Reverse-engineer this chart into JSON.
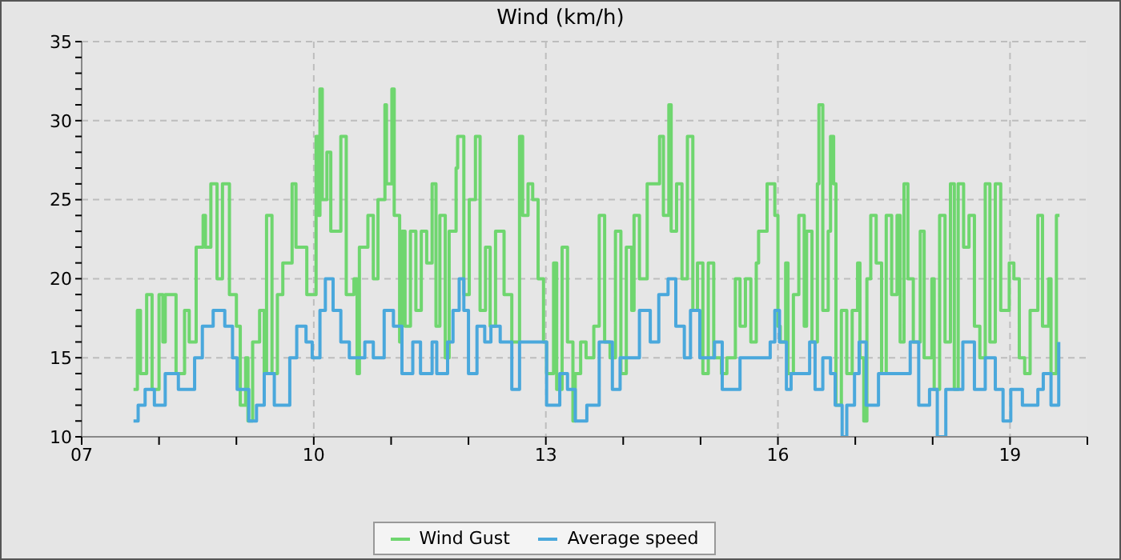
{
  "chart_data": {
    "type": "step",
    "title": "Wind (km/h)",
    "legend": "bottom",
    "grid": true,
    "line_style": "solid",
    "marker": "none",
    "xlim": [
      7,
      20
    ],
    "xticks": [
      {
        "value": 7,
        "label": "07"
      },
      {
        "value": 8,
        "label": null
      },
      {
        "value": 9,
        "label": null
      },
      10,
      {
        "value": 11,
        "label": null
      },
      {
        "value": 12,
        "label": null
      },
      13,
      {
        "value": 14,
        "label": null
      },
      {
        "value": 15,
        "label": null
      },
      16,
      {
        "value": 17,
        "label": null
      },
      {
        "value": 18,
        "label": null
      },
      19,
      {
        "value": 20,
        "label": null
      }
    ],
    "ylim": [
      10,
      35
    ],
    "yticks": [
      10,
      {
        "value": 11,
        "label": null
      },
      {
        "value": 12,
        "label": null
      },
      {
        "value": 13,
        "label": null
      },
      {
        "value": 14,
        "label": null
      },
      15,
      {
        "value": 16,
        "label": null
      },
      {
        "value": 17,
        "label": null
      },
      {
        "value": 18,
        "label": null
      },
      {
        "value": 19,
        "label": null
      },
      20,
      {
        "value": 21,
        "label": null
      },
      {
        "value": 22,
        "label": null
      },
      {
        "value": 23,
        "label": null
      },
      {
        "value": 24,
        "label": null
      },
      25,
      {
        "value": 26,
        "label": null
      },
      {
        "value": 27,
        "label": null
      },
      {
        "value": 28,
        "label": null
      },
      {
        "value": 29,
        "label": null
      },
      30,
      {
        "value": 31,
        "label": null
      },
      {
        "value": 32,
        "label": null
      },
      {
        "value": 33,
        "label": null
      },
      {
        "value": 34,
        "label": null
      },
      35
    ],
    "series": [
      {
        "name": "Wind Gust",
        "color": "#6fd66f",
        "x": [
          7.67,
          7.72,
          7.76,
          7.84,
          7.91,
          8.0,
          8.05,
          8.08,
          8.22,
          8.33,
          8.39,
          8.48,
          8.57,
          8.6,
          8.67,
          8.75,
          8.82,
          8.91,
          9.0,
          9.05,
          9.12,
          9.15,
          9.21,
          9.3,
          9.36,
          9.39,
          9.46,
          9.53,
          9.6,
          9.72,
          9.77,
          9.91,
          10.03,
          10.06,
          10.08,
          10.11,
          10.17,
          10.22,
          10.35,
          10.42,
          10.52,
          10.56,
          10.59,
          10.7,
          10.77,
          10.83,
          10.92,
          10.94,
          11.01,
          11.04,
          11.11,
          11.14,
          11.18,
          11.25,
          11.32,
          11.39,
          11.46,
          11.53,
          11.58,
          11.63,
          11.7,
          11.75,
          11.84,
          11.86,
          11.94,
          12.01,
          12.09,
          12.15,
          12.22,
          12.28,
          12.35,
          12.46,
          12.56,
          12.66,
          12.7,
          12.77,
          12.83,
          12.9,
          12.97,
          13.01,
          13.1,
          13.14,
          13.21,
          13.28,
          13.35,
          13.38,
          13.45,
          13.52,
          13.62,
          13.69,
          13.76,
          13.83,
          13.9,
          13.97,
          14.04,
          14.11,
          14.14,
          14.21,
          14.31,
          14.41,
          14.47,
          14.52,
          14.59,
          14.62,
          14.69,
          14.76,
          14.83,
          14.9,
          14.96,
          15.03,
          15.1,
          15.17,
          15.27,
          15.34,
          15.45,
          15.51,
          15.58,
          15.65,
          15.72,
          15.75,
          15.86,
          15.93,
          15.96,
          16.0,
          16.03,
          16.1,
          16.13,
          16.2,
          16.27,
          16.34,
          16.37,
          16.44,
          16.51,
          16.53,
          16.58,
          16.65,
          16.68,
          16.72,
          16.75,
          16.82,
          16.89,
          16.96,
          17.03,
          17.06,
          17.11,
          17.15,
          17.2,
          17.27,
          17.34,
          17.4,
          17.47,
          17.54,
          17.58,
          17.63,
          17.68,
          17.75,
          17.84,
          17.89,
          17.99,
          18.02,
          18.09,
          18.16,
          18.23,
          18.28,
          18.33,
          18.4,
          18.47,
          18.54,
          18.61,
          18.68,
          18.74,
          18.81,
          18.88,
          18.99,
          19.05,
          19.12,
          19.19,
          19.26,
          19.36,
          19.42,
          19.5,
          19.53,
          19.6,
          19.64
        ],
        "values": [
          13,
          18,
          14,
          19,
          13,
          19,
          16,
          19,
          14,
          18,
          16,
          22,
          24,
          22,
          26,
          20,
          26,
          19,
          17,
          12,
          15,
          11,
          16,
          18,
          14,
          24,
          14,
          19,
          21,
          26,
          22,
          19,
          29,
          24,
          32,
          25,
          28,
          23,
          29,
          19,
          20,
          14,
          22,
          24,
          20,
          25,
          31,
          26,
          32,
          24,
          16,
          23,
          17,
          23,
          18,
          23,
          21,
          26,
          17,
          24,
          15,
          23,
          27,
          29,
          19,
          25,
          29,
          18,
          22,
          17,
          23,
          19,
          16,
          29,
          24,
          26,
          25,
          20,
          16,
          14,
          21,
          13,
          22,
          16,
          11,
          14,
          16,
          15,
          17,
          24,
          16,
          15,
          23,
          14,
          22,
          18,
          24,
          20,
          26,
          26,
          29,
          24,
          31,
          23,
          26,
          20,
          29,
          18,
          21,
          14,
          21,
          15,
          14,
          15,
          20,
          17,
          20,
          16,
          21,
          23,
          26,
          26,
          24,
          17,
          16,
          21,
          14,
          19,
          24,
          17,
          23,
          16,
          26,
          31,
          18,
          23,
          29,
          26,
          12,
          18,
          14,
          18,
          21,
          15,
          11,
          20,
          24,
          21,
          14,
          24,
          19,
          24,
          16,
          26,
          20,
          16,
          23,
          15,
          20,
          13,
          24,
          16,
          26,
          13,
          26,
          22,
          24,
          17,
          15,
          26,
          16,
          26,
          18,
          21,
          20,
          15,
          14,
          18,
          24,
          17,
          20,
          14,
          24,
          24
        ]
      },
      {
        "name": "Average speed",
        "color": "#4aa8dc",
        "x": [
          7.67,
          7.73,
          7.82,
          7.94,
          8.08,
          8.25,
          8.39,
          8.46,
          8.56,
          8.7,
          8.85,
          8.95,
          9.01,
          9.16,
          9.26,
          9.36,
          9.49,
          9.69,
          9.78,
          9.9,
          9.98,
          10.08,
          10.15,
          10.25,
          10.35,
          10.46,
          10.66,
          10.77,
          10.91,
          11.03,
          11.14,
          11.28,
          11.38,
          11.53,
          11.59,
          11.73,
          11.8,
          11.88,
          11.94,
          12.0,
          12.11,
          12.21,
          12.29,
          12.41,
          12.56,
          12.66,
          12.83,
          13.01,
          13.18,
          13.28,
          13.38,
          13.53,
          13.69,
          13.86,
          13.96,
          14.11,
          14.21,
          14.35,
          14.46,
          14.58,
          14.68,
          14.79,
          14.87,
          14.99,
          15.18,
          15.28,
          15.45,
          15.51,
          15.65,
          15.8,
          15.9,
          15.96,
          16.02,
          16.11,
          16.17,
          16.33,
          16.41,
          16.48,
          16.58,
          16.68,
          16.74,
          16.83,
          16.89,
          16.99,
          17.05,
          17.14,
          17.3,
          17.45,
          17.65,
          17.71,
          17.82,
          17.96,
          18.06,
          18.17,
          18.29,
          18.39,
          18.54,
          18.68,
          18.81,
          18.91,
          19.01,
          19.16,
          19.36,
          19.43,
          19.53,
          19.63
        ],
        "values": [
          11,
          12,
          13,
          12,
          14,
          13,
          13,
          15,
          17,
          18,
          17,
          15,
          13,
          11,
          12,
          14,
          12,
          15,
          17,
          16,
          15,
          18,
          20,
          18,
          16,
          15,
          16,
          15,
          18,
          17,
          14,
          16,
          14,
          16,
          14,
          16,
          18,
          20,
          18,
          14,
          17,
          16,
          17,
          16,
          13,
          16,
          16,
          12,
          14,
          13,
          11,
          12,
          16,
          13,
          15,
          15,
          18,
          16,
          19,
          20,
          17,
          15,
          18,
          15,
          16,
          13,
          13,
          15,
          15,
          15,
          16,
          18,
          16,
          13,
          14,
          14,
          16,
          13,
          15,
          14,
          12,
          10,
          12,
          14,
          16,
          12,
          14,
          14,
          14,
          16,
          12,
          13,
          10,
          13,
          13,
          16,
          13,
          15,
          13,
          11,
          13,
          12,
          13,
          14,
          12,
          16
        ]
      }
    ]
  }
}
